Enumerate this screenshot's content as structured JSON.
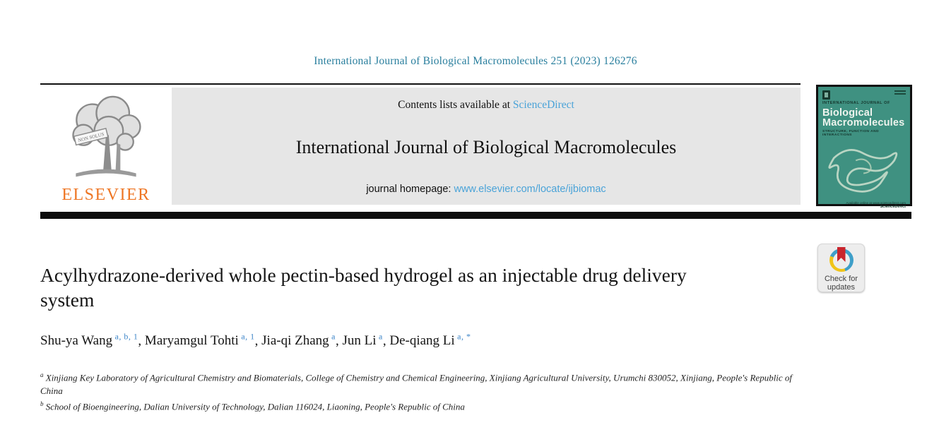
{
  "journal": {
    "citation": "International Journal of Biological Macromolecules 251 (2023) 126276",
    "contents_prefix": "Contents lists available at ",
    "sciencedirect_label": "ScienceDirect",
    "masthead_title": "International Journal of Biological Macromolecules",
    "homepage_prefix": "journal homepage: ",
    "homepage_url": "www.elsevier.com/locate/ijbiomac"
  },
  "publisher": {
    "name": "ELSEVIER",
    "motto": "NON SOLUS"
  },
  "cover": {
    "kicker": "INTERNATIONAL JOURNAL OF",
    "title_line1": "Biological",
    "title_line2": "Macromolecules",
    "subtitle": "STRUCTURE, FUNCTION AND INTERACTIONS",
    "footer_small": "Available online at www.sciencedirect.com",
    "footer_brand": "ScienceDirect"
  },
  "badge": {
    "line1": "Check for",
    "line2": "updates"
  },
  "article": {
    "title": "Acylhydrazone-derived whole pectin-based hydrogel as an injectable drug delivery system",
    "authors": [
      {
        "name": "Shu-ya Wang",
        "sup": "a, b, 1"
      },
      {
        "name": "Maryamgul Tohti",
        "sup": "a, 1"
      },
      {
        "name": "Jia-qi Zhang",
        "sup": "a"
      },
      {
        "name": "Jun Li",
        "sup": "a"
      },
      {
        "name": "De-qiang Li",
        "sup": "a, *"
      }
    ],
    "affiliations": [
      {
        "marker": "a",
        "text": "Xinjiang Key Laboratory of Agricultural Chemistry and Biomaterials, College of Chemistry and Chemical Engineering, Xinjiang Agricultural University, Urumchi 830052, Xinjiang, People's Republic of China"
      },
      {
        "marker": "b",
        "text": "School of Bioengineering, Dalian University of Technology, Dalian 116024, Liaoning, People's Republic of China"
      }
    ]
  },
  "colors": {
    "citation_teal": "#2a7f9e",
    "link_blue": "#4aa3d8",
    "superscript_blue": "#3d85c8",
    "banner_gray": "#e6e6e6",
    "elsevier_orange": "#ee7624",
    "cover_teal": "#3f9181",
    "cover_yellow": "#d8bc2a",
    "badge_red": "#c9252d",
    "badge_blue": "#3e9fc9",
    "badge_yellow": "#f0c419"
  }
}
